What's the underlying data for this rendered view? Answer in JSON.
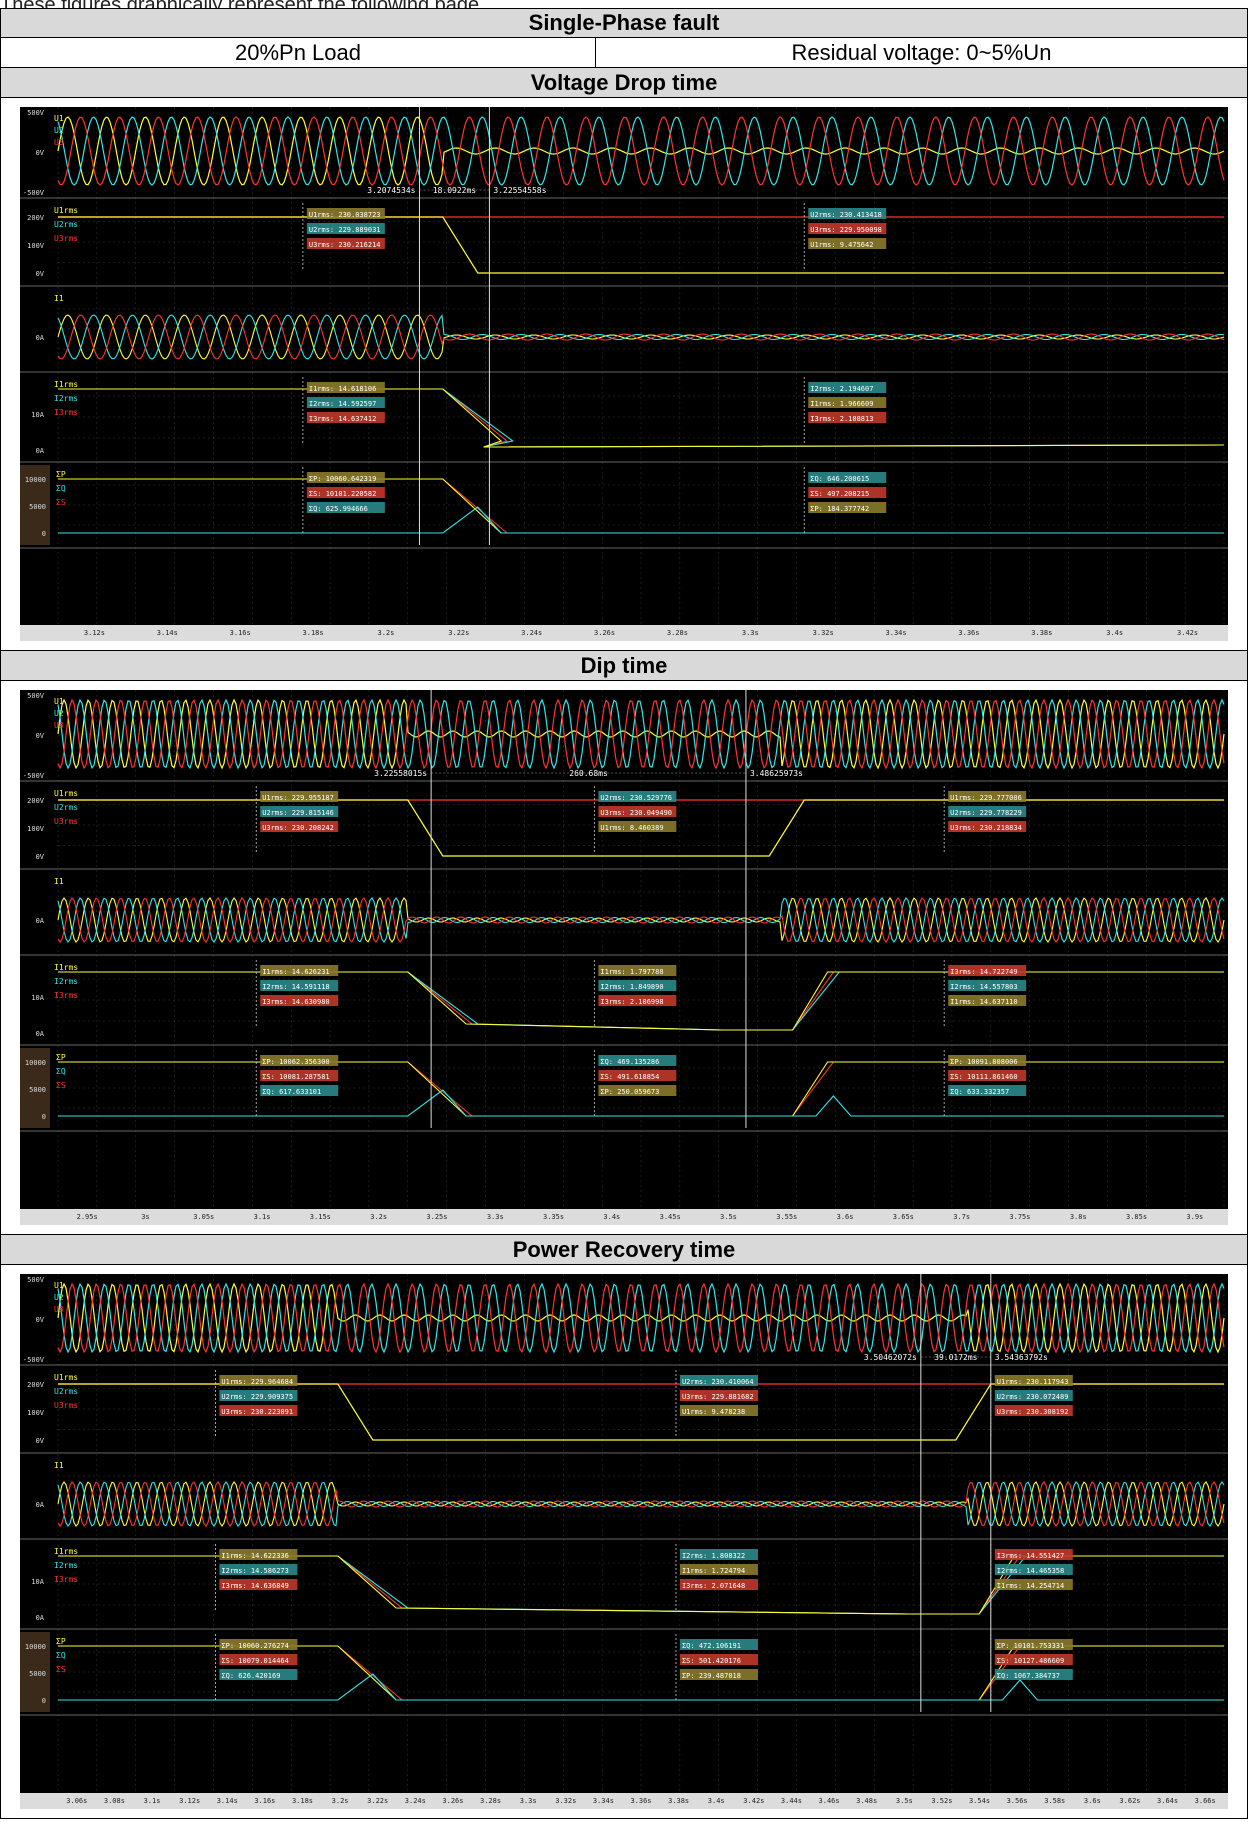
{
  "intro_text": "These figures graphically represent the following page...",
  "title": "Single-Phase fault",
  "load": "20%Pn Load",
  "residual": "Residual voltage: 0~5%Un",
  "panels": [
    {
      "heading": "Voltage Drop time",
      "cursor1": "3.2074534s",
      "delta": "18.0922ms",
      "cursor2": "3.22554558s",
      "xticks": [
        "3.12s",
        "3.14s",
        "3.16s",
        "3.18s",
        "3.2s",
        "3.22s",
        "3.24s",
        "3.26s",
        "3.28s",
        "3.3s",
        "3.32s",
        "3.34s",
        "3.36s",
        "3.38s",
        "3.4s",
        "3.42s"
      ],
      "markers": [
        {
          "pos": 0.21,
          "ch": "U",
          "vals": [
            "U1rms: 230.038723",
            "U2rms: 229.889031",
            "U3rms: 230.216214"
          ]
        },
        {
          "pos": 0.64,
          "ch": "U",
          "vals": [
            "U2rms: 230.413418",
            "U3rms: 229.950098",
            "U1rms: 9.475642"
          ]
        },
        {
          "pos": 0.21,
          "ch": "I",
          "vals": [
            "I1rms: 14.618106",
            "I2rms: 14.592597",
            "I3rms: 14.637412"
          ]
        },
        {
          "pos": 0.64,
          "ch": "I",
          "vals": [
            "I2rms: 2.194607",
            "I1rms: 1.966609",
            "I3rms: 2.108813"
          ]
        },
        {
          "pos": 0.21,
          "ch": "P",
          "vals": [
            "ΣP: 10060.642319",
            "ΣS: 10101.220582",
            "ΣQ: 625.994666"
          ]
        },
        {
          "pos": 0.64,
          "ch": "P",
          "vals": [
            "ΣQ: 646.200615",
            "ΣS: 497.208215",
            "ΣP: 184.377742"
          ]
        }
      ]
    },
    {
      "heading": "Dip time",
      "cursor1": "3.22558015s",
      "delta": "260.68ms",
      "cursor2": "3.48625973s",
      "xticks": [
        "2.95s",
        "3s",
        "3.05s",
        "3.1s",
        "3.15s",
        "3.2s",
        "3.25s",
        "3.3s",
        "3.35s",
        "3.4s",
        "3.45s",
        "3.5s",
        "3.55s",
        "3.6s",
        "3.65s",
        "3.7s",
        "3.75s",
        "3.8s",
        "3.85s",
        "3.9s"
      ],
      "markers": [
        {
          "pos": 0.17,
          "ch": "U",
          "vals": [
            "U1rms: 229.955187",
            "U2rms: 229.815146",
            "U3rms: 230.208242"
          ]
        },
        {
          "pos": 0.46,
          "ch": "U",
          "vals": [
            "U2rms: 230.529776",
            "U3rms: 230.049490",
            "U1rms: 8.460389"
          ]
        },
        {
          "pos": 0.76,
          "ch": "U",
          "vals": [
            "U1rms: 229.777006",
            "U2rms: 229.778229",
            "U3rms: 230.218834"
          ]
        },
        {
          "pos": 0.17,
          "ch": "I",
          "vals": [
            "I1rms: 14.626231",
            "I2rms: 14.591118",
            "I3rms: 14.630980"
          ]
        },
        {
          "pos": 0.46,
          "ch": "I",
          "vals": [
            "I1rms: 1.797788",
            "I2rms: 1.849890",
            "I3rms: 2.106998"
          ]
        },
        {
          "pos": 0.76,
          "ch": "I",
          "vals": [
            "I3rms: 14.722749",
            "I2rms: 14.557803",
            "I1rms: 14.637110"
          ]
        },
        {
          "pos": 0.17,
          "ch": "P",
          "vals": [
            "ΣP: 10062.356300",
            "ΣS: 10081.287581",
            "ΣQ: 617.633101"
          ]
        },
        {
          "pos": 0.46,
          "ch": "P",
          "vals": [
            "ΣQ: 469.135286",
            "ΣS: 491.618854",
            "ΣP: 250.059673"
          ]
        },
        {
          "pos": 0.76,
          "ch": "P",
          "vals": [
            "ΣP: 10091.808006",
            "ΣS: 10111.861460",
            "ΣQ: 633.332357"
          ]
        }
      ]
    },
    {
      "heading": "Power Recovery time",
      "cursor1": "3.50462072s",
      "delta": "39.0172ms",
      "cursor2": "3.54363792s",
      "xticks": [
        "3.06s",
        "3.08s",
        "3.1s",
        "3.12s",
        "3.14s",
        "3.16s",
        "3.18s",
        "3.2s",
        "3.22s",
        "3.24s",
        "3.26s",
        "3.28s",
        "3.3s",
        "3.32s",
        "3.34s",
        "3.36s",
        "3.38s",
        "3.4s",
        "3.42s",
        "3.44s",
        "3.46s",
        "3.48s",
        "3.5s",
        "3.52s",
        "3.54s",
        "3.56s",
        "3.58s",
        "3.6s",
        "3.62s",
        "3.64s",
        "3.66s"
      ],
      "markers": [
        {
          "pos": 0.135,
          "ch": "U",
          "vals": [
            "U1rms: 229.964684",
            "U2rms: 229.909375",
            "U3rms: 230.223091"
          ]
        },
        {
          "pos": 0.53,
          "ch": "U",
          "vals": [
            "U2rms: 230.410064",
            "U3rms: 229.881682",
            "U1rms: 9.478238"
          ]
        },
        {
          "pos": 0.8,
          "ch": "U",
          "vals": [
            "U1rms: 230.117943",
            "U2rms: 230.072489",
            "U3rms: 230.308192"
          ]
        },
        {
          "pos": 0.135,
          "ch": "I",
          "vals": [
            "I1rms: 14.622336",
            "I2rms: 14.586273",
            "I3rms: 14.636849"
          ]
        },
        {
          "pos": 0.53,
          "ch": "I",
          "vals": [
            "I2rms: 1.808322",
            "I1rms: 1.724794",
            "I3rms: 2.071648"
          ]
        },
        {
          "pos": 0.8,
          "ch": "I",
          "vals": [
            "I3rms: 14.551427",
            "I2rms: 14.465358",
            "I1rms: 14.254714"
          ]
        },
        {
          "pos": 0.135,
          "ch": "P",
          "vals": [
            "ΣP: 10060.276274",
            "ΣS: 10079.014464",
            "ΣQ: 626.420169"
          ]
        },
        {
          "pos": 0.53,
          "ch": "P",
          "vals": [
            "ΣQ: 472.106191",
            "ΣS: 501.420176",
            "ΣP: 239.487018"
          ]
        },
        {
          "pos": 0.8,
          "ch": "P",
          "vals": [
            "ΣP: 10101.753331",
            "ΣS: 10127.486609",
            "ΣQ: 1067.384737"
          ]
        }
      ]
    }
  ],
  "labels": {
    "u_axis": [
      "500V",
      "0V",
      "-500V"
    ],
    "urms_axis": [
      "200V",
      "100V",
      "0V"
    ],
    "i_axis": [
      "0A"
    ],
    "irms_axis": [
      "10A",
      "0A"
    ],
    "p_axis": [
      "10000",
      "5000",
      "0"
    ],
    "ch_u": [
      "U1",
      "U2",
      "U3"
    ],
    "ch_urms": [
      "U1rms",
      "U2rms",
      "U3rms"
    ],
    "ch_i": [
      "I1"
    ],
    "ch_irms": [
      "I1rms",
      "I2rms",
      "I3rms"
    ],
    "ch_p": [
      "ΣP",
      "ΣQ",
      "ΣS"
    ]
  },
  "chart_data": {
    "type": "line",
    "title": "Single-Phase fault",
    "series": [
      {
        "name": "U1rms",
        "panel": "Voltage Drop time",
        "x": [
          3.16,
          3.2074534,
          3.22554558,
          3.3
        ],
        "values": [
          230.038723,
          230,
          9.5,
          9.475642
        ]
      },
      {
        "name": "U2rms",
        "panel": "Voltage Drop time",
        "x": [
          3.16,
          3.3
        ],
        "values": [
          229.889031,
          230.413418
        ]
      },
      {
        "name": "I1rms",
        "panel": "Voltage Drop time",
        "x": [
          3.16,
          3.3
        ],
        "values": [
          14.618106,
          1.966609
        ]
      },
      {
        "name": "ΣP",
        "panel": "Voltage Drop time",
        "x": [
          3.16,
          3.3
        ],
        "values": [
          10060.642319,
          184.377742
        ]
      }
    ],
    "colors": {
      "U1": "#ffff33",
      "U2": "#33e6e6",
      "U3": "#ff3333",
      "grid": "#3a3a3a",
      "bg": "#000000"
    }
  }
}
